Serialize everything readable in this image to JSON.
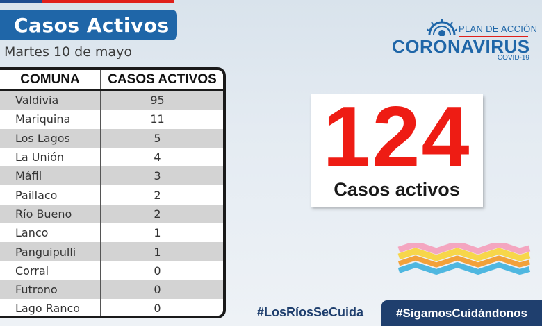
{
  "header": {
    "title": "Casos Activos",
    "date": "Martes 10 de mayo"
  },
  "logo": {
    "plan": "PLAN DE ACCIÓN",
    "name": "CORONAVIRUS",
    "sub": "COVID-19"
  },
  "table": {
    "headers": [
      "COMUNA",
      "CASOS ACTIVOS"
    ],
    "rows": [
      {
        "comuna": "Valdivia",
        "casos": "95"
      },
      {
        "comuna": "Mariquina",
        "casos": "11"
      },
      {
        "comuna": "Los Lagos",
        "casos": "5"
      },
      {
        "comuna": "La Unión",
        "casos": "4"
      },
      {
        "comuna": "Máfil",
        "casos": "3"
      },
      {
        "comuna": "Paillaco",
        "casos": "2"
      },
      {
        "comuna": "Río Bueno",
        "casos": "2"
      },
      {
        "comuna": "Lanco",
        "casos": "1"
      },
      {
        "comuna": "Panguipulli",
        "casos": "1"
      },
      {
        "comuna": "Corral",
        "casos": "0"
      },
      {
        "comuna": "Futrono",
        "casos": "0"
      },
      {
        "comuna": "Lago Ranco",
        "casos": "0"
      }
    ]
  },
  "total": {
    "number": "124",
    "label": "Casos activos"
  },
  "hashtags": {
    "first": "#LosRíosSeCuida",
    "second": "#SigamosCuidándonos"
  },
  "colors": {
    "banner": "#1f66a8",
    "accent_red": "#ee1c14",
    "dark_navy": "#1f3f6e"
  }
}
